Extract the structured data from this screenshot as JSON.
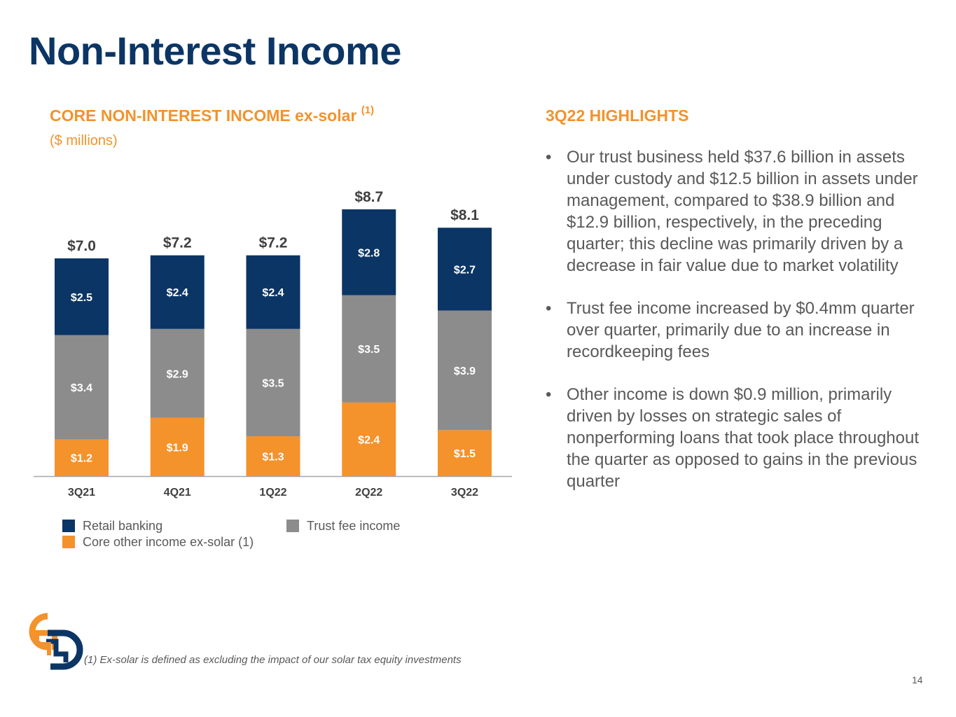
{
  "page": {
    "title": "Non-Interest Income",
    "page_number": "14",
    "footnote": "(1) Ex-solar is defined as excluding the impact of our solar tax equity investments"
  },
  "chart_data": {
    "type": "bar",
    "stacked": true,
    "title": "CORE NON-INTEREST INCOME ex-solar",
    "title_superscript": "(1)",
    "subtitle": "($ millions)",
    "categories": [
      "3Q21",
      "4Q21",
      "1Q22",
      "2Q22",
      "3Q22"
    ],
    "series": [
      {
        "name": "Core other income ex-solar (1)",
        "color": "#f4922c",
        "values": [
          1.2,
          1.9,
          1.3,
          2.4,
          1.5
        ],
        "labels": [
          "$1.2",
          "$1.9",
          "$1.3",
          "$2.4",
          "$1.5"
        ]
      },
      {
        "name": "Trust fee income",
        "color": "#8c8c8c",
        "values": [
          3.4,
          2.9,
          3.5,
          3.5,
          3.9
        ],
        "labels": [
          "$3.4",
          "$2.9",
          "$3.5",
          "$3.5",
          "$3.9"
        ]
      },
      {
        "name": "Retail banking",
        "color": "#0b3564",
        "values": [
          2.5,
          2.4,
          2.4,
          2.8,
          2.7
        ],
        "labels": [
          "$2.5",
          "$2.4",
          "$2.4",
          "$2.8",
          "$2.7"
        ]
      }
    ],
    "totals": [
      7.0,
      7.2,
      7.2,
      8.7,
      8.1
    ],
    "total_labels": [
      "$7.0",
      "$7.2",
      "$7.2",
      "$8.7",
      "$8.1"
    ],
    "ylim": [
      0,
      9
    ],
    "grid": false,
    "legend_order": [
      "Retail banking",
      "Trust fee income",
      "Core other income ex-solar (1)"
    ],
    "legend_position": "bottom"
  },
  "highlights": {
    "title": "3Q22 HIGHLIGHTS",
    "items": [
      "Our trust business held $37.6 billion in assets under custody and $12.5 billion in assets under management, compared to $38.9 billion and $12.9 billion, respectively, in the preceding quarter; this decline was primarily driven by a decrease in fair value due to market volatility",
      "Trust fee income increased by $0.4mm quarter over quarter, primarily due to an increase in recordkeeping fees",
      "Other income is down $0.9 million, primarily driven by losses on strategic sales of nonperforming loans that took place throughout the quarter as opposed to gains in the previous quarter"
    ]
  },
  "colors": {
    "title": "#0b3564",
    "accent": "#f4922c",
    "text": "#595959"
  }
}
